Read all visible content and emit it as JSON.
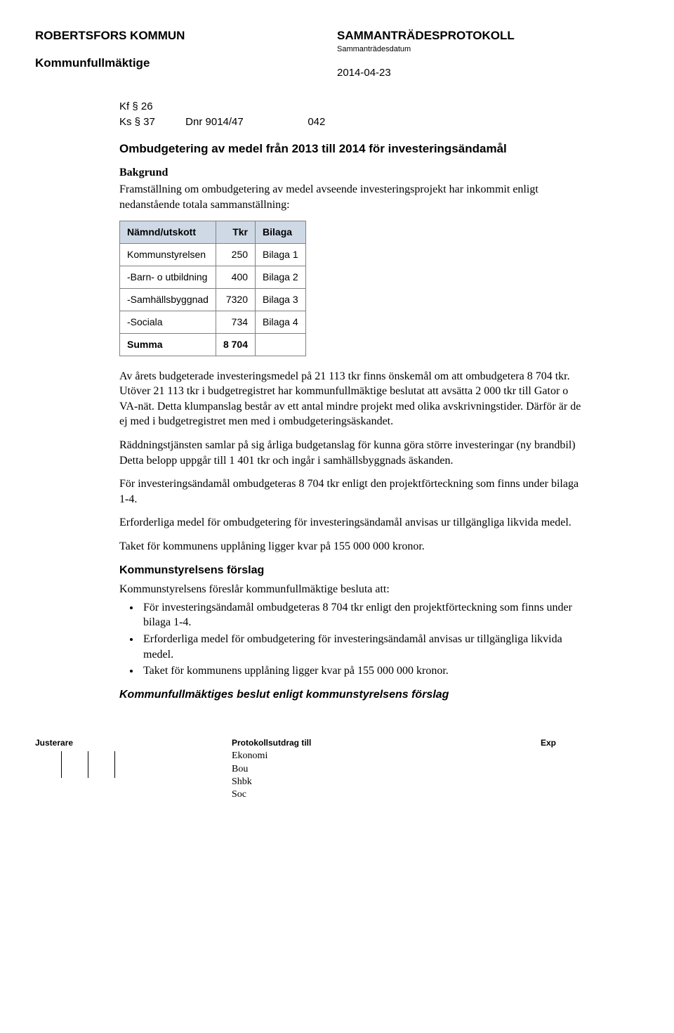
{
  "header": {
    "org": "ROBERTSFORS KOMMUN",
    "body": "Kommunfullmäktige",
    "protokoll": "SAMMANTRÄDESPROTOKOLL",
    "sub_label": "Sammanträdesdatum",
    "date": "2014-04-23"
  },
  "refs": {
    "kf": "Kf § 26",
    "ks": "Ks § 37",
    "dnr": "Dnr 9014/47",
    "code": "042"
  },
  "title": "Ombudgetering av medel från 2013 till 2014 för investeringsändamål",
  "background": {
    "heading": "Bakgrund",
    "text": "Framställning om ombudgetering av medel avseende investeringsprojekt har inkommit enligt nedanstående totala sammanställning:"
  },
  "table": {
    "header_bg": "#cfd9e6",
    "border_color": "#808080",
    "columns": [
      "Nämnd/utskott",
      "Tkr",
      "Bilaga"
    ],
    "col_align": [
      "left",
      "right",
      "left"
    ],
    "rows": [
      [
        "Kommunstyrelsen",
        "250",
        "Bilaga 1"
      ],
      [
        "-Barn- o utbildning",
        "400",
        "Bilaga 2"
      ],
      [
        "-Samhällsbyggnad",
        "7320",
        "Bilaga 3"
      ],
      [
        "-Sociala",
        "734",
        "Bilaga 4"
      ]
    ],
    "sum_row": [
      "Summa",
      "8 704",
      ""
    ]
  },
  "paragraphs": [
    "Av årets budgeterade investeringsmedel på 21 113 tkr finns önskemål om att ombudgetera 8 704 tkr. Utöver 21 113 tkr i budgetregistret har kommunfullmäktige beslutat att avsätta 2 000 tkr till Gator o VA-nät. Detta klumpanslag består av ett antal mindre projekt med olika avskrivningstider. Därför är de ej med i budgetregistret men med i ombudgeteringsäskandet.",
    "Räddningstjänsten samlar på sig årliga budgetanslag för kunna göra större investeringar (ny brandbil) Detta belopp uppgår till 1 401 tkr och ingår i samhällsbyggnads äskanden.",
    "För investeringsändamål ombudgeteras 8 704 tkr  enligt den projektförteckning som finns under bilaga 1-4.",
    "Erforderliga medel för ombudgetering för investeringsändamål anvisas ur tillgängliga likvida medel.",
    "Taket för kommunens upplåning ligger kvar på 155 000 000 kronor."
  ],
  "proposal": {
    "heading": "Kommunstyrelsens förslag",
    "intro": "Kommunstyrelsens föreslår kommunfullmäktige besluta att:",
    "bullets": [
      "För investeringsändamål ombudgeteras 8 704 tkr enligt den projektförteckning som finns under bilaga 1-4.",
      "Erforderliga medel för ombudgetering för investeringsändamål anvisas ur tillgängliga likvida medel.",
      "Taket för kommunens upplåning ligger kvar på 155 000 000 kronor."
    ]
  },
  "decision": "Kommunfullmäktiges beslut enligt kommunstyrelsens förslag",
  "footer": {
    "justerare": "Justerare",
    "protokoll_label": "Protokollsutdrag till",
    "recipients": [
      "Ekonomi",
      "Bou",
      "Shbk",
      "Soc"
    ],
    "exp": "Exp"
  }
}
